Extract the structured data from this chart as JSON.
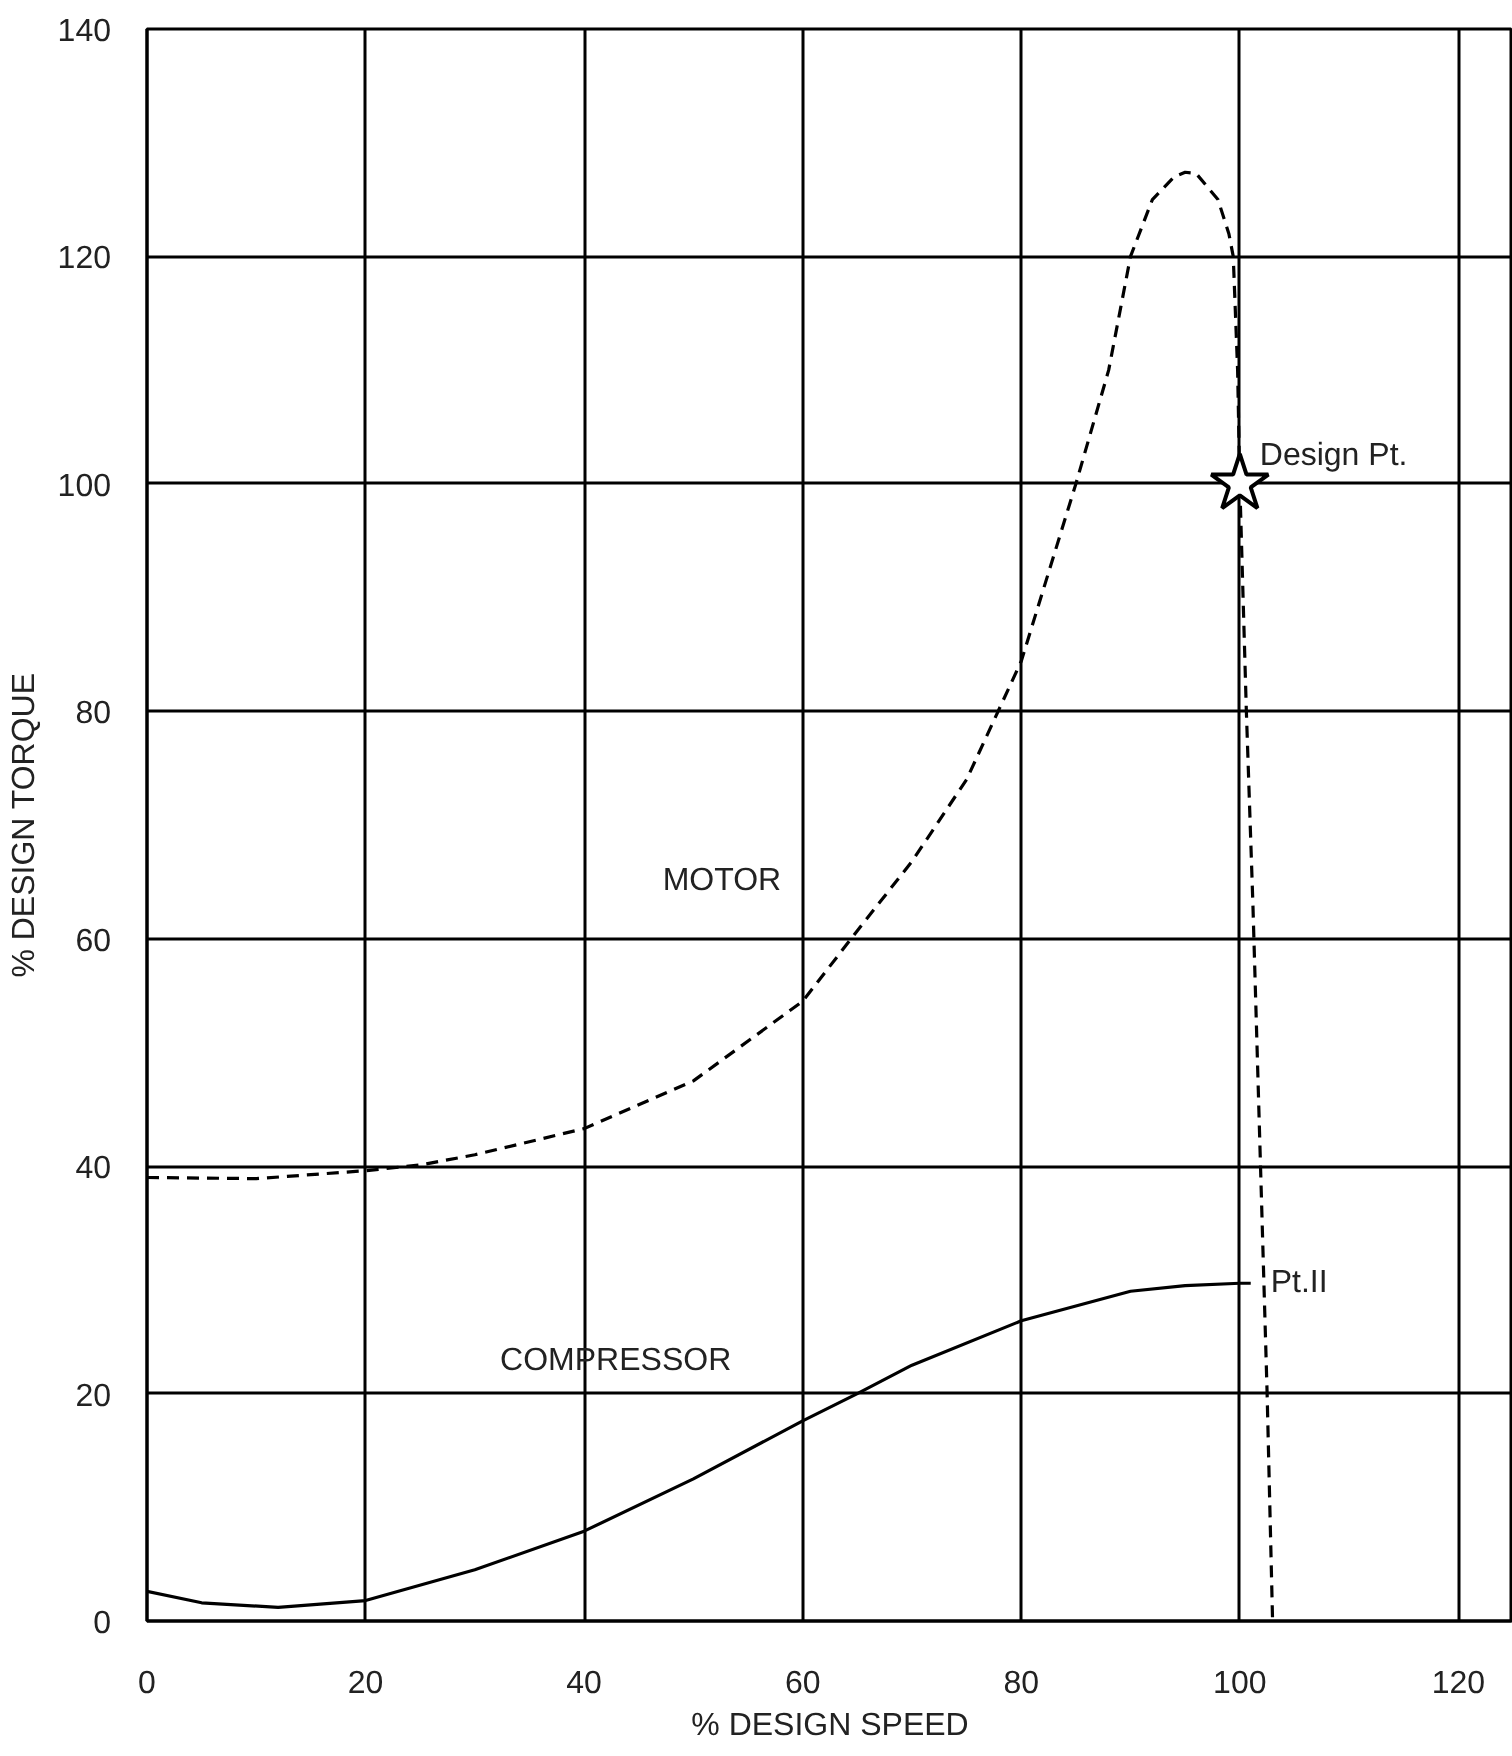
{
  "chart_data": {
    "type": "line",
    "xlabel": "% DESIGN SPEED",
    "ylabel": "% DESIGN TORQUE",
    "xlim": [
      0,
      125
    ],
    "ylim": [
      0,
      140
    ],
    "xticks": [
      0,
      20,
      40,
      60,
      80,
      100,
      120
    ],
    "yticks": [
      0,
      20,
      40,
      60,
      80,
      100,
      120,
      140
    ],
    "grid": true,
    "series": [
      {
        "name": "MOTOR",
        "color": "#000000",
        "line_style": "dashed",
        "x": [
          0,
          10,
          20,
          25,
          30,
          40,
          50,
          60,
          65,
          70,
          75,
          80,
          85,
          88,
          90,
          92,
          94,
          95,
          96,
          98,
          99,
          99.4,
          99.8,
          100,
          100.3,
          100.6,
          101.2,
          102.5,
          103
        ],
        "values": [
          39,
          38.9,
          39.6,
          40.1,
          41,
          43.3,
          47.5,
          54.5,
          60.7,
          66.8,
          74,
          84.4,
          100,
          110,
          120,
          125,
          127,
          127.4,
          127.3,
          125,
          122,
          120,
          110,
          100,
          90,
          80,
          63,
          20,
          0
        ]
      },
      {
        "name": "COMPRESSOR",
        "color": "#000000",
        "line_style": "solid",
        "x": [
          0,
          5,
          12,
          20,
          30,
          40,
          50,
          60,
          65,
          70,
          80,
          90,
          95,
          100,
          101
        ],
        "values": [
          2.6,
          1.6,
          1.2,
          1.8,
          4.5,
          7.9,
          12.5,
          17.6,
          20,
          22.5,
          26.4,
          29,
          29.5,
          29.7,
          29.7
        ]
      },
      {
        "type": "scatter",
        "color": "#000000",
        "marker": "star",
        "x": [
          100
        ],
        "values": [
          100
        ]
      }
    ],
    "annotations": [
      {
        "text": "Design Pt.",
        "x": 100,
        "y": 100
      },
      {
        "text": "Pt.II",
        "x": 101,
        "y": 29.7
      }
    ]
  }
}
